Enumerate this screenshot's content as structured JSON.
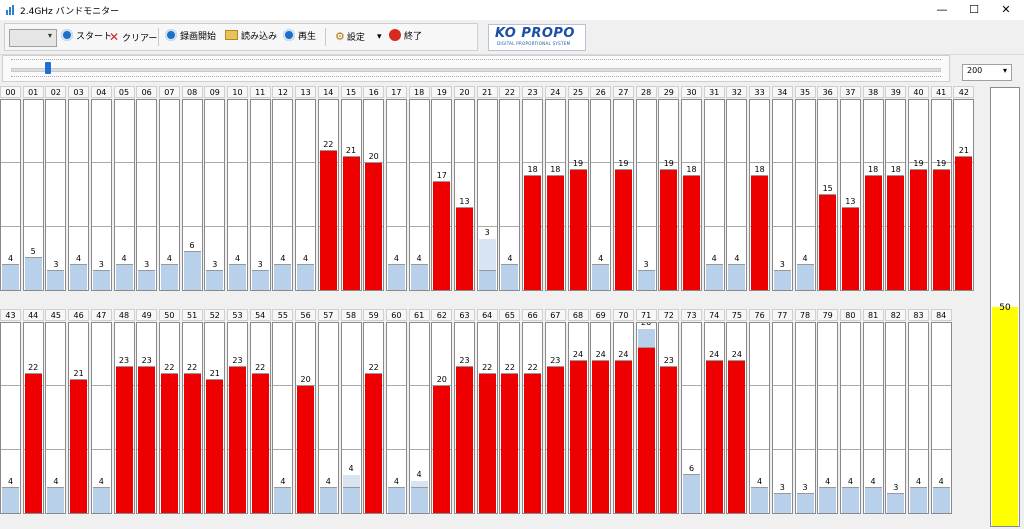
{
  "window": {
    "title": "2.4GHz バンドモニター",
    "minimize": "—",
    "maximize": "☐",
    "close": "✕"
  },
  "toolbar": {
    "combo_value": "",
    "start": "スタート",
    "clear": "クリアー",
    "record": "録画開始",
    "load": "読み込み",
    "play": "再生",
    "settings": "設定",
    "exit": "終了"
  },
  "logo": {
    "main": "KO PROPO",
    "sub": "DIGITAL PROPORTIONAL SYSTEM"
  },
  "slider": {
    "position": 0.04
  },
  "zoom": {
    "value": "200"
  },
  "level": {
    "value": "50",
    "fraction": 0.5
  },
  "colors": {
    "active": "#ef0000",
    "idle": "#b9d0ea",
    "level": "#ffff00"
  },
  "channels_row1": [
    {
      "ch": "00",
      "v": "4",
      "a": 0
    },
    {
      "ch": "01",
      "v": "5",
      "a": 0
    },
    {
      "ch": "02",
      "v": "3",
      "a": 0
    },
    {
      "ch": "03",
      "v": "4",
      "a": 0
    },
    {
      "ch": "04",
      "v": "3",
      "a": 0
    },
    {
      "ch": "05",
      "v": "4",
      "a": 0
    },
    {
      "ch": "06",
      "v": "3",
      "a": 0
    },
    {
      "ch": "07",
      "v": "4",
      "a": 0
    },
    {
      "ch": "08",
      "v": "6",
      "a": 0
    },
    {
      "ch": "09",
      "v": "3",
      "a": 0
    },
    {
      "ch": "10",
      "v": "4",
      "a": 0
    },
    {
      "ch": "11",
      "v": "3",
      "a": 0
    },
    {
      "ch": "12",
      "v": "4",
      "a": 0
    },
    {
      "ch": "13",
      "v": "4",
      "a": 0
    },
    {
      "ch": "14",
      "v": "22",
      "a": 1
    },
    {
      "ch": "15",
      "v": "21",
      "a": 1
    },
    {
      "ch": "16",
      "v": "20",
      "a": 1
    },
    {
      "ch": "17",
      "v": "4",
      "a": 0
    },
    {
      "ch": "18",
      "v": "4",
      "a": 0
    },
    {
      "ch": "19",
      "v": "17",
      "a": 1
    },
    {
      "ch": "20",
      "v": "13",
      "a": 1
    },
    {
      "ch": "21",
      "v": "3",
      "a": 0,
      "peak": 8
    },
    {
      "ch": "22",
      "v": "4",
      "a": 0
    },
    {
      "ch": "23",
      "v": "18",
      "a": 1
    },
    {
      "ch": "24",
      "v": "18",
      "a": 1
    },
    {
      "ch": "25",
      "v": "19",
      "a": 1
    },
    {
      "ch": "26",
      "v": "4",
      "a": 0
    },
    {
      "ch": "27",
      "v": "19",
      "a": 1
    },
    {
      "ch": "28",
      "v": "3",
      "a": 0
    },
    {
      "ch": "29",
      "v": "19",
      "a": 1
    },
    {
      "ch": "30",
      "v": "18",
      "a": 1
    },
    {
      "ch": "31",
      "v": "4",
      "a": 0
    },
    {
      "ch": "32",
      "v": "4",
      "a": 0
    },
    {
      "ch": "33",
      "v": "18",
      "a": 1
    },
    {
      "ch": "34",
      "v": "3",
      "a": 0
    },
    {
      "ch": "35",
      "v": "4",
      "a": 0
    },
    {
      "ch": "36",
      "v": "15",
      "a": 1
    },
    {
      "ch": "37",
      "v": "13",
      "a": 1
    },
    {
      "ch": "38",
      "v": "18",
      "a": 1
    },
    {
      "ch": "39",
      "v": "18",
      "a": 1
    },
    {
      "ch": "40",
      "v": "19",
      "a": 1
    },
    {
      "ch": "41",
      "v": "19",
      "a": 1
    },
    {
      "ch": "42",
      "v": "21",
      "a": 1
    }
  ],
  "channels_row2": [
    {
      "ch": "43",
      "v": "4",
      "a": 0
    },
    {
      "ch": "44",
      "v": "22",
      "a": 1
    },
    {
      "ch": "45",
      "v": "4",
      "a": 0
    },
    {
      "ch": "46",
      "v": "21",
      "a": 1
    },
    {
      "ch": "47",
      "v": "4",
      "a": 0
    },
    {
      "ch": "48",
      "v": "23",
      "a": 1
    },
    {
      "ch": "49",
      "v": "23",
      "a": 1
    },
    {
      "ch": "50",
      "v": "22",
      "a": 1
    },
    {
      "ch": "51",
      "v": "22",
      "a": 1
    },
    {
      "ch": "52",
      "v": "21",
      "a": 1
    },
    {
      "ch": "53",
      "v": "23",
      "a": 1
    },
    {
      "ch": "54",
      "v": "22",
      "a": 1
    },
    {
      "ch": "55",
      "v": "4",
      "a": 0
    },
    {
      "ch": "56",
      "v": "20",
      "a": 1
    },
    {
      "ch": "57",
      "v": "4",
      "a": 0
    },
    {
      "ch": "58",
      "v": "4",
      "a": 0,
      "peak": 6
    },
    {
      "ch": "59",
      "v": "22",
      "a": 1
    },
    {
      "ch": "60",
      "v": "4",
      "a": 0
    },
    {
      "ch": "61",
      "v": "4",
      "a": 0,
      "peak": 5
    },
    {
      "ch": "62",
      "v": "20",
      "a": 1
    },
    {
      "ch": "63",
      "v": "23",
      "a": 1
    },
    {
      "ch": "64",
      "v": "22",
      "a": 1
    },
    {
      "ch": "65",
      "v": "22",
      "a": 1
    },
    {
      "ch": "66",
      "v": "22",
      "a": 1
    },
    {
      "ch": "67",
      "v": "23",
      "a": 1
    },
    {
      "ch": "68",
      "v": "24",
      "a": 1
    },
    {
      "ch": "69",
      "v": "24",
      "a": 1
    },
    {
      "ch": "70",
      "v": "24",
      "a": 1
    },
    {
      "ch": "71",
      "v": "26",
      "a": 1,
      "peak": 29
    },
    {
      "ch": "72",
      "v": "23",
      "a": 1
    },
    {
      "ch": "73",
      "v": "6",
      "a": 0
    },
    {
      "ch": "74",
      "v": "24",
      "a": 1
    },
    {
      "ch": "75",
      "v": "24",
      "a": 1
    },
    {
      "ch": "76",
      "v": "4",
      "a": 0
    },
    {
      "ch": "77",
      "v": "3",
      "a": 0
    },
    {
      "ch": "78",
      "v": "3",
      "a": 0
    },
    {
      "ch": "79",
      "v": "4",
      "a": 0
    },
    {
      "ch": "80",
      "v": "4",
      "a": 0
    },
    {
      "ch": "81",
      "v": "4",
      "a": 0
    },
    {
      "ch": "82",
      "v": "3",
      "a": 0
    },
    {
      "ch": "83",
      "v": "4",
      "a": 0
    },
    {
      "ch": "84",
      "v": "4",
      "a": 0
    }
  ]
}
